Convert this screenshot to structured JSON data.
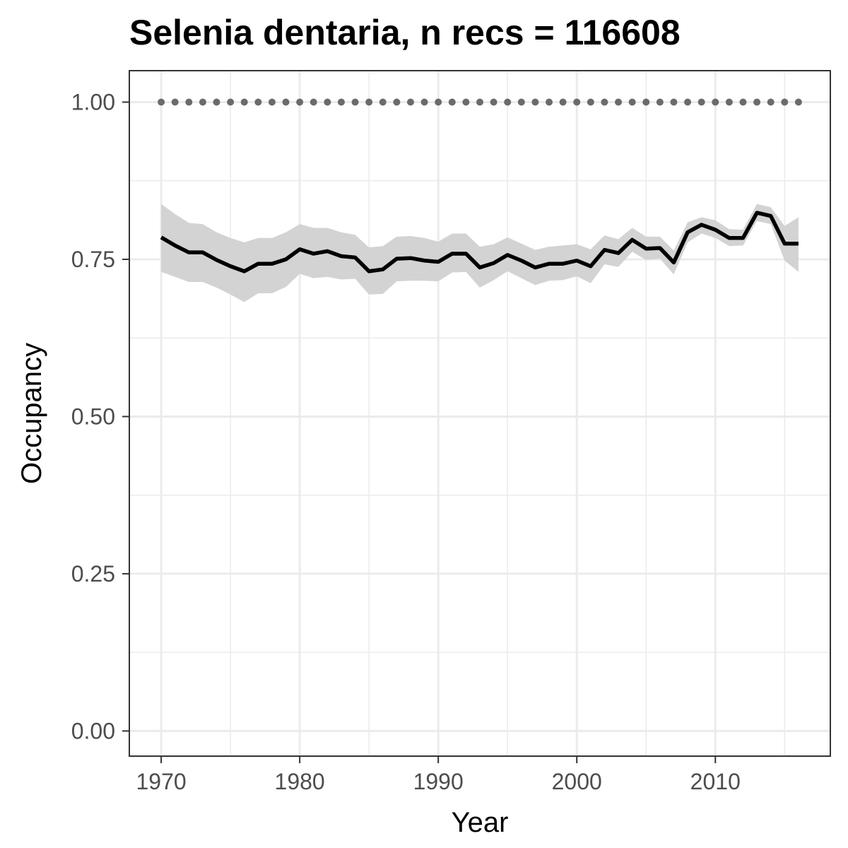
{
  "chart_data": {
    "type": "line",
    "title": "Selenia dentaria, n recs = 116608",
    "xlabel": "Year",
    "ylabel": "Occupancy",
    "xlim": [
      1967.7,
      2018.3
    ],
    "ylim": [
      -0.04,
      1.05
    ],
    "grid": true,
    "x_ticks": [
      {
        "value": 1970,
        "label": "1970"
      },
      {
        "value": 1980,
        "label": "1980"
      },
      {
        "value": 1990,
        "label": "1990"
      },
      {
        "value": 2000,
        "label": "2000"
      },
      {
        "value": 2010,
        "label": "2010"
      }
    ],
    "y_ticks": [
      {
        "value": 0.0,
        "label": "0.00"
      },
      {
        "value": 0.25,
        "label": "0.25"
      },
      {
        "value": 0.5,
        "label": "0.50"
      },
      {
        "value": 0.75,
        "label": "0.75"
      },
      {
        "value": 1.0,
        "label": "1.00"
      }
    ],
    "x": [
      1970,
      1971,
      1972,
      1973,
      1974,
      1975,
      1976,
      1977,
      1978,
      1979,
      1980,
      1981,
      1982,
      1983,
      1984,
      1985,
      1986,
      1987,
      1988,
      1989,
      1990,
      1991,
      1992,
      1993,
      1994,
      1995,
      1996,
      1997,
      1998,
      1999,
      2000,
      2001,
      2002,
      2003,
      2004,
      2005,
      2006,
      2007,
      2008,
      2009,
      2010,
      2011,
      2012,
      2013,
      2014,
      2015,
      2016
    ],
    "series": [
      {
        "role": "mean",
        "color": "#000000",
        "values": [
          0.785,
          0.772,
          0.761,
          0.761,
          0.749,
          0.739,
          0.731,
          0.743,
          0.743,
          0.75,
          0.766,
          0.759,
          0.763,
          0.755,
          0.753,
          0.731,
          0.734,
          0.751,
          0.752,
          0.748,
          0.746,
          0.759,
          0.759,
          0.737,
          0.744,
          0.757,
          0.748,
          0.737,
          0.743,
          0.743,
          0.748,
          0.739,
          0.765,
          0.76,
          0.781,
          0.767,
          0.768,
          0.745,
          0.793,
          0.805,
          0.797,
          0.784,
          0.784,
          0.824,
          0.819,
          0.775,
          0.775
        ]
      },
      {
        "role": "lower",
        "color": "#d3d3d3",
        "values": [
          0.73,
          0.722,
          0.714,
          0.714,
          0.705,
          0.694,
          0.682,
          0.696,
          0.696,
          0.706,
          0.727,
          0.72,
          0.722,
          0.718,
          0.719,
          0.694,
          0.695,
          0.715,
          0.716,
          0.716,
          0.715,
          0.729,
          0.73,
          0.705,
          0.717,
          0.731,
          0.72,
          0.709,
          0.716,
          0.717,
          0.723,
          0.712,
          0.742,
          0.738,
          0.762,
          0.749,
          0.751,
          0.726,
          0.777,
          0.791,
          0.784,
          0.771,
          0.772,
          0.811,
          0.806,
          0.748,
          0.73
        ]
      },
      {
        "role": "upper",
        "color": "#d3d3d3",
        "values": [
          0.838,
          0.822,
          0.808,
          0.806,
          0.793,
          0.784,
          0.777,
          0.784,
          0.784,
          0.793,
          0.806,
          0.8,
          0.8,
          0.793,
          0.789,
          0.769,
          0.771,
          0.786,
          0.787,
          0.784,
          0.778,
          0.791,
          0.791,
          0.77,
          0.774,
          0.785,
          0.775,
          0.765,
          0.77,
          0.772,
          0.774,
          0.766,
          0.788,
          0.782,
          0.8,
          0.786,
          0.786,
          0.764,
          0.809,
          0.817,
          0.812,
          0.798,
          0.797,
          0.838,
          0.833,
          0.803,
          0.817
        ]
      },
      {
        "role": "reference",
        "style": "dotted",
        "color": "#6b6b6b",
        "values": [
          1,
          1,
          1,
          1,
          1,
          1,
          1,
          1,
          1,
          1,
          1,
          1,
          1,
          1,
          1,
          1,
          1,
          1,
          1,
          1,
          1,
          1,
          1,
          1,
          1,
          1,
          1,
          1,
          1,
          1,
          1,
          1,
          1,
          1,
          1,
          1,
          1,
          1,
          1,
          1,
          1,
          1,
          1,
          1,
          1,
          1,
          1
        ]
      }
    ]
  }
}
